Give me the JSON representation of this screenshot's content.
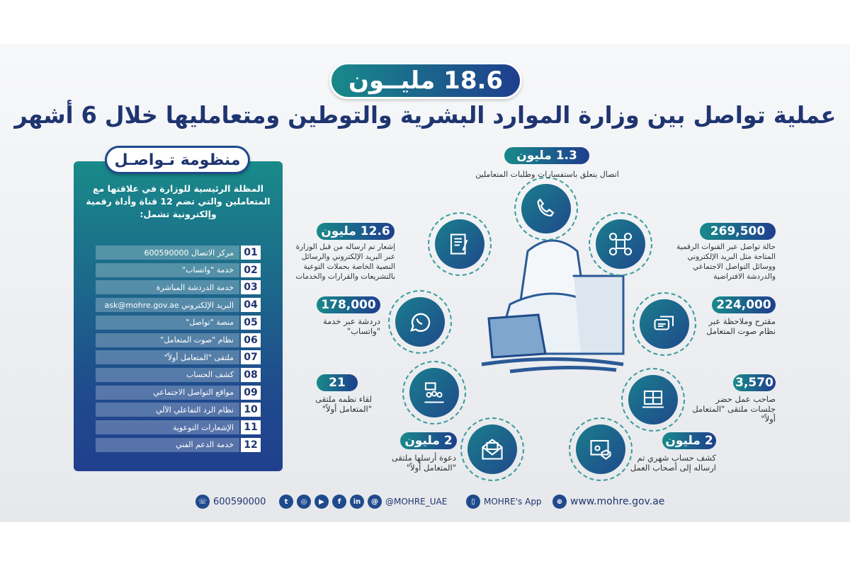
{
  "colors": {
    "teal": "#188a8a",
    "navy": "#1f3e8e",
    "text": "#1f3570"
  },
  "header": {
    "title": "18.6 مليــون",
    "subtitle": "عملية تواصل بين وزارة الموارد البشرية والتوطين ومتعامليها خلال 6 أشهر"
  },
  "panel": {
    "title": "منظومة تـواصـل",
    "intro": "المظلة الرئيسية للوزارة في علاقتها مع المتعاملين والتي تضم 12 قناة وأداة رقمية وإلكترونية تشمل:",
    "items": [
      {
        "num": "01",
        "label": "مركز الاتصال 600590000"
      },
      {
        "num": "02",
        "label": "خدمة \"واتساب\""
      },
      {
        "num": "03",
        "label": "خدمة الدردشة المباشرة"
      },
      {
        "num": "04",
        "label": "البريد الإلكتروني ask@mohre.gov.ae"
      },
      {
        "num": "05",
        "label": "منصة \"تواصل\""
      },
      {
        "num": "06",
        "label": "نظام \"صوت المتعامل\""
      },
      {
        "num": "07",
        "label": "ملتقى \"المتعامل أولاً\""
      },
      {
        "num": "08",
        "label": "كشف الحساب"
      },
      {
        "num": "09",
        "label": "مواقع التواصل الاجتماعي"
      },
      {
        "num": "10",
        "label": "نظام الرد التفاعلي الآلي"
      },
      {
        "num": "11",
        "label": "الإشعارات التوعوية"
      },
      {
        "num": "12",
        "label": "خدمة الدعم الفني"
      }
    ]
  },
  "stats": {
    "calls": {
      "value": "1.3 مليون",
      "text": "اتصال يتعلق باستفسارات وطلبات المتعاملين",
      "icon": "phone-icon"
    },
    "notifications": {
      "value": "12.6 مليون",
      "text": "إشعار تم ارساله من قبل الوزارة عبر البريد الإلكتروني والرسائل النصية الخاصة بحملات التوعية بالتشريعات والقرارات والخدمات",
      "icon": "document-icon"
    },
    "digital": {
      "value": "269,500",
      "text": "حالة تواصل عبر القنوات الرقمية المتاحة مثل البريد الإلكتروني ووسائل التواصل الاجتماعي والدردشة الافتراضية",
      "icon": "social-media-icon"
    },
    "whatsapp": {
      "value": "178,000",
      "text": "دردشة عبر خدمة \"واتساب\"",
      "icon": "whatsapp-icon"
    },
    "voice": {
      "value": "224,000",
      "text": "مقترح وملاحظة عبر نظام صوت المتعامل",
      "icon": "chat-icon"
    },
    "meetings": {
      "value": "21",
      "text": "لقاء نظمه ملتقى \"المتعامل أولاً\"",
      "icon": "meeting-icon"
    },
    "employers": {
      "value": "3,570",
      "text": "صاحب عمل حضر جلسات ملتقى \"المتعامل أولاً\"",
      "icon": "video-conference-icon"
    },
    "invites": {
      "value": "2 مليون",
      "text": "دعوة أرسلها ملتقى \"المتعامل أولاً\"",
      "icon": "envelope-icon"
    },
    "statements": {
      "value": "2 مليون",
      "text": "كشف حساب شهري تم ارساله إلى أصحاب العمل",
      "icon": "account-statement-icon"
    }
  },
  "footer": {
    "phone": "600590000",
    "social_handle": "@MOHRE_UAE",
    "app": "MOHRE's App",
    "website": "www.mohre.gov.ae",
    "social": [
      "twitter",
      "instagram",
      "youtube",
      "facebook",
      "linkedin",
      "threads"
    ]
  }
}
